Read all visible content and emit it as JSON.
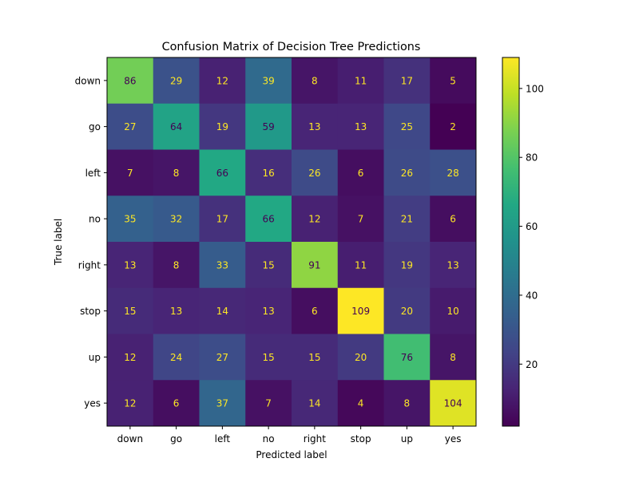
{
  "chart_data": {
    "type": "heatmap",
    "title": "Confusion Matrix of Decision Tree Predictions",
    "xlabel": "Predicted label",
    "ylabel": "True label",
    "x_categories": [
      "down",
      "go",
      "left",
      "no",
      "right",
      "stop",
      "up",
      "yes"
    ],
    "y_categories": [
      "down",
      "go",
      "left",
      "no",
      "right",
      "stop",
      "up",
      "yes"
    ],
    "values": [
      [
        86,
        29,
        12,
        39,
        8,
        11,
        17,
        5
      ],
      [
        27,
        64,
        19,
        59,
        13,
        13,
        25,
        2
      ],
      [
        7,
        8,
        66,
        16,
        26,
        6,
        26,
        28
      ],
      [
        35,
        32,
        17,
        66,
        12,
        7,
        21,
        6
      ],
      [
        13,
        8,
        33,
        15,
        91,
        11,
        19,
        13
      ],
      [
        15,
        13,
        14,
        13,
        6,
        109,
        20,
        10
      ],
      [
        12,
        24,
        27,
        15,
        15,
        20,
        76,
        8
      ],
      [
        12,
        6,
        37,
        7,
        14,
        4,
        8,
        104
      ]
    ],
    "colormap": "viridis",
    "value_range": [
      2,
      109
    ],
    "colorbar_ticks": [
      20,
      40,
      60,
      80,
      100
    ],
    "label_colors": {
      "on_dark": "#fde725",
      "on_light": "#440154"
    }
  }
}
